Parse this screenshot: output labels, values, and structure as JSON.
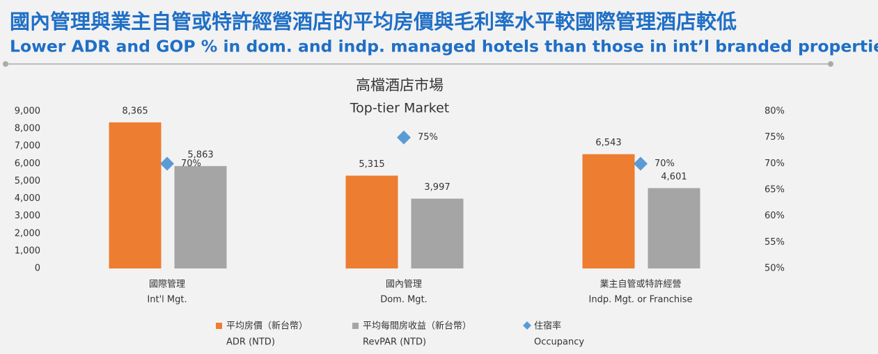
{
  "header": {
    "title_zh": "國內管理與業主自管或特許經營酒店的平均房價與毛利率水平較國際管理酒店較低",
    "title_en": "Lower ADR and GOP % in dom. and indp. managed hotels than those in int’l branded properties"
  },
  "chart_data": {
    "type": "bar",
    "title": "高檔酒店市場",
    "subtitle": "Top-tier Market",
    "categories": [
      "國際管理",
      "國內管理",
      "業主自管或特許經營"
    ],
    "categories_en": [
      "Int'l Mgt.",
      "Dom. Mgt.",
      "Indp. Mgt. or Franchise"
    ],
    "series": [
      {
        "name": "平均房價（新台幣）",
        "name_en": "ADR (NTD)",
        "type": "bar",
        "color": "#ed7d31",
        "values": [
          8365,
          5315,
          6543
        ],
        "value_labels": [
          "8,365",
          "5,315",
          "6,543"
        ]
      },
      {
        "name": "平均每間房收益（新台幣）",
        "name_en": "RevPAR (NTD)",
        "type": "bar",
        "color": "#a5a5a5",
        "values": [
          5863,
          3997,
          4601
        ],
        "value_labels": [
          "5,863",
          "3,997",
          "4,601"
        ]
      },
      {
        "name": "住宿率",
        "name_en": "Occupancy",
        "type": "scatter",
        "marker": "diamond",
        "axis": "y2",
        "color": "#5b9bd5",
        "values": [
          70,
          75,
          70
        ],
        "value_labels": [
          "70%",
          "75%",
          "70%"
        ]
      }
    ],
    "ylim": [
      0,
      9000
    ],
    "yticks": [
      0,
      {
        "value": 1000,
        "label": "1,000"
      },
      {
        "value": 2000,
        "label": "2,000"
      },
      {
        "value": 3000,
        "label": "3,000"
      },
      {
        "value": 4000,
        "label": "4,000"
      },
      {
        "value": 5000,
        "label": "5,000"
      },
      {
        "value": 6000,
        "label": "6,000"
      },
      {
        "value": 7000,
        "label": "7,000"
      },
      {
        "value": 8000,
        "label": "8,000"
      },
      {
        "value": 9000,
        "label": "9,000"
      }
    ],
    "y2lim": [
      50,
      80
    ],
    "y2ticks": [
      {
        "value": 50,
        "label": "50%"
      },
      {
        "value": 55,
        "label": "55%"
      },
      {
        "value": 60,
        "label": "60%"
      },
      {
        "value": 65,
        "label": "65%"
      },
      {
        "value": 70,
        "label": "70%"
      },
      {
        "value": 75,
        "label": "75%"
      },
      {
        "value": 80,
        "label": "80%"
      }
    ],
    "grid": false,
    "legend": "bottom"
  }
}
